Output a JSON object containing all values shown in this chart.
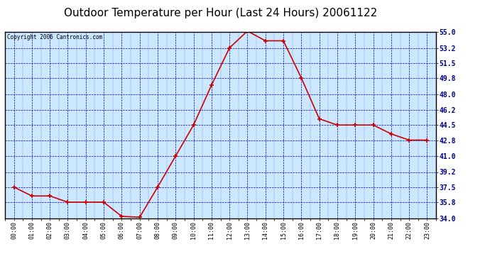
{
  "title": "Outdoor Temperature per Hour (Last 24 Hours) 20061122",
  "copyright_text": "Copyright 2006 Cantronics.com",
  "hours": [
    0,
    1,
    2,
    3,
    4,
    5,
    6,
    7,
    8,
    9,
    10,
    11,
    12,
    13,
    14,
    15,
    16,
    17,
    18,
    19,
    20,
    21,
    22,
    23
  ],
  "hour_labels": [
    "00:00",
    "01:00",
    "02:00",
    "03:00",
    "04:00",
    "05:00",
    "06:00",
    "07:00",
    "08:00",
    "09:00",
    "10:00",
    "11:00",
    "12:00",
    "13:00",
    "14:00",
    "15:00",
    "16:00",
    "17:00",
    "18:00",
    "19:00",
    "20:00",
    "21:00",
    "22:00",
    "23:00"
  ],
  "temperatures": [
    37.5,
    36.5,
    36.5,
    35.8,
    35.8,
    35.8,
    34.2,
    34.1,
    37.5,
    41.0,
    44.5,
    49.0,
    53.2,
    55.1,
    54.0,
    54.0,
    49.8,
    45.2,
    44.5,
    44.5,
    44.5,
    43.5,
    42.8,
    42.8
  ],
  "ylim": [
    34.0,
    55.0
  ],
  "yticks": [
    34.0,
    35.8,
    37.5,
    39.2,
    41.0,
    42.8,
    44.5,
    46.2,
    48.0,
    49.8,
    51.5,
    53.2,
    55.0
  ],
  "line_color": "#cc0000",
  "marker_color": "#cc0000",
  "grid_color": "#0000cc",
  "axis_bg_color": "#cce8ff",
  "border_color": "#000000",
  "title_fontsize": 11
}
